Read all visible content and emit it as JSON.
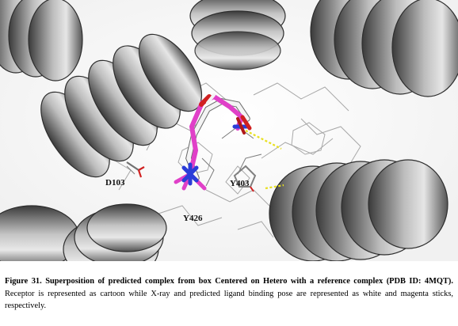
{
  "figure": {
    "residue_labels": [
      "D103",
      "Y403",
      "Y426"
    ]
  },
  "caption": {
    "label": "Figure 31.",
    "bold_text": "Superposition of predicted complex from box Centered on Hetero with a reference complex (PDB ID: 4MQT).",
    "body_text": "Receptor is represented as cartoon while X-ray and predicted ligand binding pose are represented as white and magenta sticks, respectively."
  },
  "colors": {
    "helix_dark": "#3c3c3c",
    "helix_mid": "#8a8a8a",
    "helix_light": "#d8d8d8",
    "xray_ligand": "#f2f2f2",
    "predicted_ligand": "#e040c8",
    "nitrogen": "#2a3cd8",
    "oxygen": "#d02020",
    "hbond": "#e8e020"
  }
}
